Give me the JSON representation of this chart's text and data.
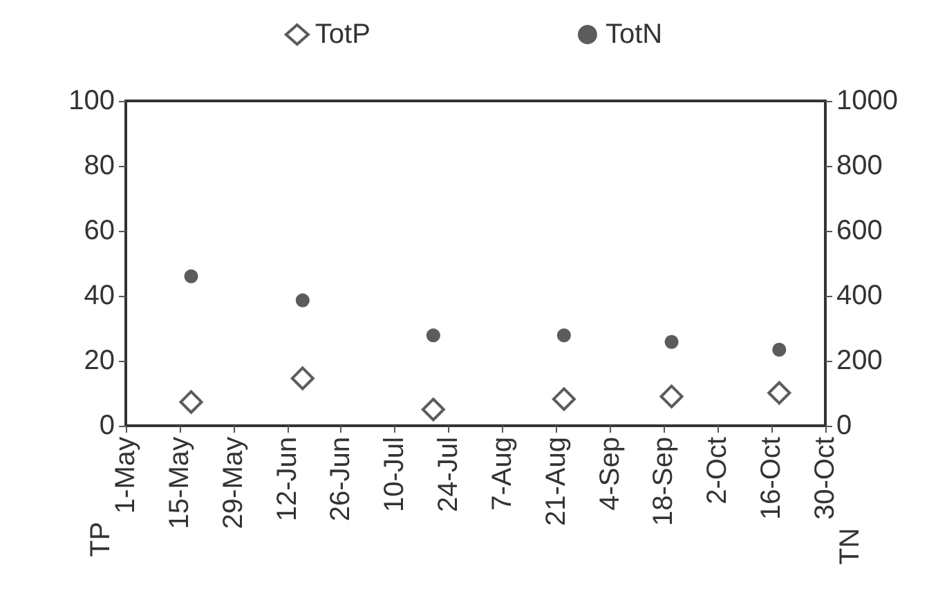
{
  "chart_data": {
    "type": "scatter",
    "x": [
      "--05-18",
      "--06-16",
      "--07-20",
      "--08-23",
      "--09-20",
      "--10-18"
    ],
    "series": [
      {
        "name": "TotP",
        "color": "#333333",
        "marker": "diamond",
        "values": [
          7.3,
          14.6,
          5,
          8.2,
          9,
          10.1
        ]
      },
      {
        "name": "TotN",
        "color": "#333333",
        "marker": "circle",
        "axis": "y2",
        "values": [
          460,
          386,
          278,
          278,
          258,
          234
        ]
      }
    ],
    "xlim": [
      "--05-01",
      "--10-30"
    ],
    "xticks": [
      {
        "value": "--05-01",
        "label": "1-May"
      },
      {
        "value": "--05-15",
        "label": "15-May"
      },
      {
        "value": "--05-29",
        "label": "29-May"
      },
      {
        "value": "--06-12",
        "label": "12-Jun"
      },
      {
        "value": "--06-26",
        "label": "26-Jun"
      },
      {
        "value": "--07-10",
        "label": "10-Jul"
      },
      {
        "value": "--07-24",
        "label": "24-Jul"
      },
      {
        "value": "--08-07",
        "label": "7-Aug"
      },
      {
        "value": "--08-21",
        "label": "21-Aug"
      },
      {
        "value": "--09-04",
        "label": "4-Sep"
      },
      {
        "value": "--09-18",
        "label": "18-Sep"
      },
      {
        "value": "--10-02",
        "label": "2-Oct"
      },
      {
        "value": "--10-16",
        "label": "16-Oct"
      },
      {
        "value": "--10-30",
        "label": "30-Oct"
      }
    ],
    "ylabel": "TP",
    "y2label": "TN",
    "ylim": [
      0,
      100
    ],
    "yticks": [
      0,
      20,
      40,
      60,
      80,
      100
    ],
    "y2lim": [
      0,
      1000
    ],
    "y2ticks": [
      0,
      200,
      400,
      600,
      800,
      1000
    ],
    "grid": false,
    "legend": "top"
  }
}
